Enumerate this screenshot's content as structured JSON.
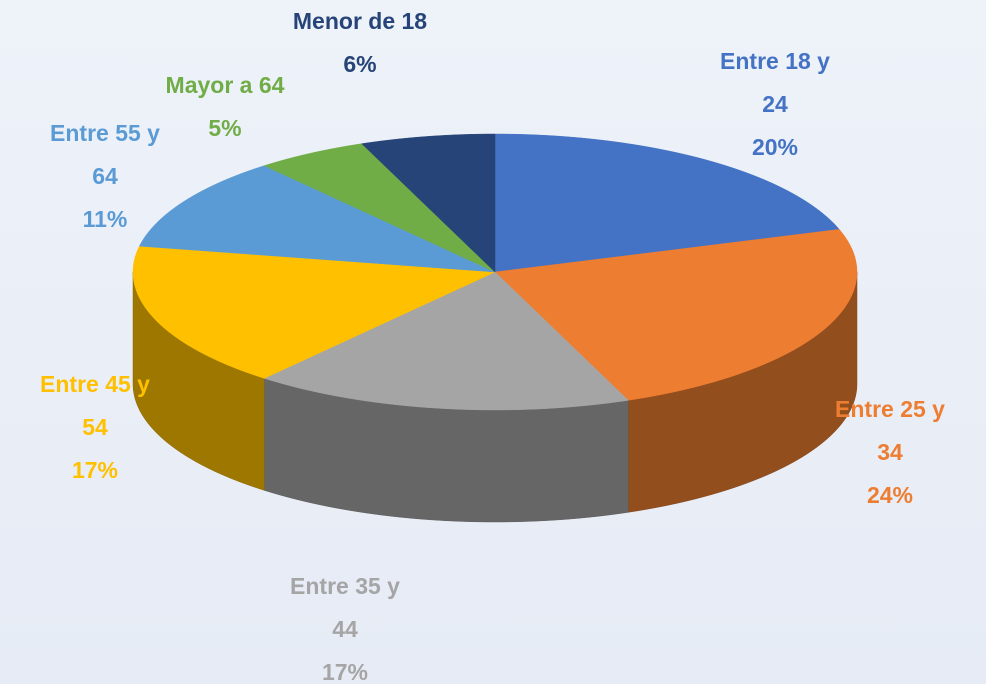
{
  "chart_data": {
    "type": "pie3d",
    "categories": [
      "Entre 18 y 24",
      "Entre 25 y 34",
      "Entre 35 y 44",
      "Entre 45 y 54",
      "Entre 55 y 64",
      "Mayor a 64",
      "Menor de 18"
    ],
    "values": [
      20,
      24,
      17,
      17,
      11,
      5,
      6
    ],
    "value_labels": [
      "20%",
      "24%",
      "17%",
      "17%",
      "11%",
      "5%",
      "6%"
    ],
    "colors": [
      "#4472c4",
      "#ed7d31",
      "#a5a5a5",
      "#ffc000",
      "#5b9bd5",
      "#70ad47",
      "#264478"
    ]
  }
}
